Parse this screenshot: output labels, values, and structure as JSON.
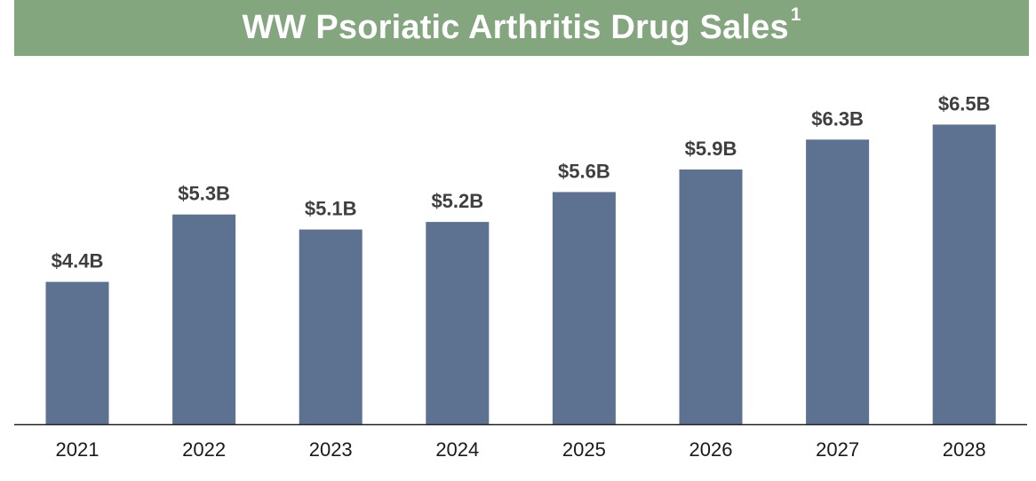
{
  "chart_data": {
    "type": "bar",
    "title": "WW Psoriatic Arthritis Drug Sales",
    "title_superscript": "1",
    "categories": [
      "2021",
      "2022",
      "2023",
      "2024",
      "2025",
      "2026",
      "2027",
      "2028"
    ],
    "values": [
      4.4,
      5.3,
      5.1,
      5.2,
      5.6,
      5.9,
      6.3,
      6.5
    ],
    "value_labels": [
      "$4.4B",
      "$5.3B",
      "$5.1B",
      "$5.2B",
      "$5.6B",
      "$5.9B",
      "$6.3B",
      "$6.5B"
    ],
    "xlabel": "",
    "ylabel": "",
    "ylim": [
      2.5,
      7
    ],
    "grid": false,
    "legend": "none"
  },
  "colors": {
    "title_background": "#84a67e",
    "bar": "#5d7190",
    "axis": "#222222"
  }
}
